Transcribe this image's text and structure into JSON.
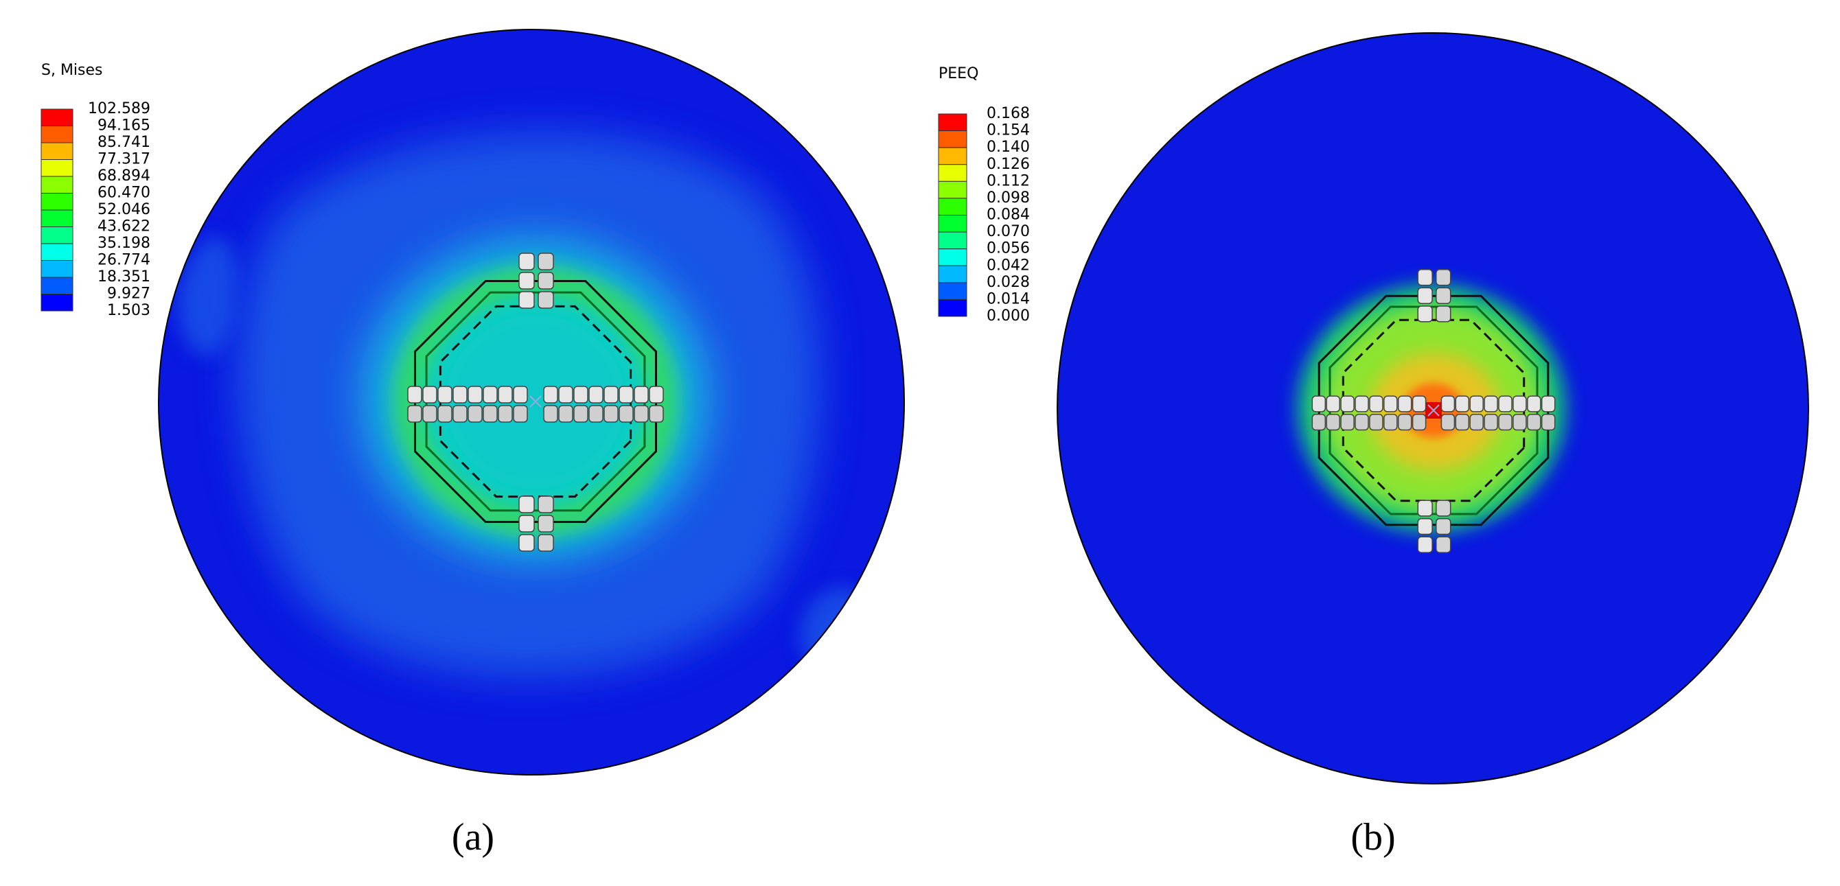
{
  "panels": [
    {
      "label": "(a)",
      "legend": {
        "title": "S, Mises",
        "labels": [
          "102.589",
          "94.165",
          "85.741",
          "77.317",
          "68.894",
          "60.470",
          "52.046",
          "43.622",
          "35.198",
          "26.774",
          "18.351",
          "9.927",
          "1.503"
        ],
        "colors": [
          "#ff0000",
          "#ff5c00",
          "#ffb900",
          "#e8ff00",
          "#8bff00",
          "#2eff00",
          "#00ff2e",
          "#00ff8b",
          "#00ffe8",
          "#00b9ff",
          "#005cff",
          "#0000ff"
        ]
      }
    },
    {
      "label": "(b)",
      "legend": {
        "title": "PEEQ",
        "labels": [
          "0.168",
          "0.154",
          "0.140",
          "0.126",
          "0.112",
          "0.098",
          "0.084",
          "0.070",
          "0.056",
          "0.042",
          "0.028",
          "0.014",
          "0.000"
        ],
        "colors": [
          "#ff0000",
          "#ff5c00",
          "#ffb900",
          "#e8ff00",
          "#8bff00",
          "#2eff00",
          "#00ff2e",
          "#00ff8b",
          "#00ffe8",
          "#00b9ff",
          "#005cff",
          "#0000ff"
        ]
      }
    }
  ]
}
